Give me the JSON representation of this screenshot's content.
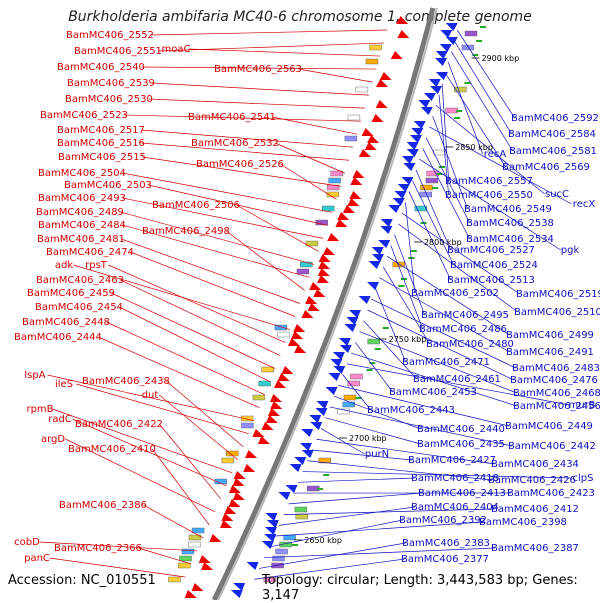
{
  "title": "Burkholderia ambifaria MC40-6 chromosome 1, complete genome",
  "footer": {
    "accession": "Accession: NC_010551",
    "topology": "Topology: circular; Length: 3,443,583 bp; Genes: 3,147"
  },
  "colors": {
    "forward_label": "#d40000",
    "reverse_label": "#1010c0",
    "forward_arrow": "#ee0000",
    "reverse_arrow": "#1428e6",
    "backbone": "#777777"
  },
  "ticks": [
    {
      "label": "2900 kbp"
    },
    {
      "label": "2850 kbp"
    },
    {
      "label": "2800 kbp"
    },
    {
      "label": "2750 kbp"
    },
    {
      "label": "2700 kbp"
    },
    {
      "label": "2650 kbp"
    }
  ],
  "forward_genes": [
    "BamMC406_2552",
    "BamMC406_2551",
    "moaC",
    "BamMC406_2540",
    "BamMC406_2563",
    "BamMC406_2539",
    "BamMC406_2530",
    "BamMC406_2523",
    "BamMC406_2541",
    "BamMC406_2517",
    "BamMC406_2516",
    "BamMC406_2532",
    "BamMC406_2515",
    "BamMC406_2526",
    "BamMC406_2504",
    "BamMC406_2503",
    "BamMC406_2493",
    "BamMC406_2506",
    "BamMC406_2489",
    "BamMC406_2484",
    "BamMC406_2498",
    "BamMC406_2481",
    "BamMC406_2474",
    "adk",
    "rpsT",
    "BamMC406_2463",
    "BamMC406_2459",
    "BamMC406_2454",
    "BamMC406_2448",
    "BamMC406_2444",
    "lspA",
    "ileS",
    "BamMC406_2438",
    "dut",
    "rpmB",
    "radC",
    "BamMC406_2422",
    "argD",
    "BamMC406_2410",
    "BamMC406_2386",
    "cobD",
    "BamMC406_2366",
    "panC"
  ],
  "reverse_genes": [
    "BamMC406_2592",
    "BamMC406_2584",
    "BamMC406_2581",
    "recA",
    "BamMC406_2569",
    "BamMC406_2557",
    "BamMC406_2550",
    "sucC",
    "BamMC406_2549",
    "recX",
    "BamMC406_2538",
    "BamMC406_2534",
    "pgk",
    "BamMC406_2527",
    "BamMC406_2524",
    "BamMC406_2513",
    "BamMC406_2502",
    "BamMC406_2519",
    "BamMC406_2510",
    "BamMC406_2495",
    "BamMC406_2486",
    "BamMC406_2499",
    "BamMC406_2480",
    "BamMC406_2491",
    "BamMC406_2471",
    "BamMC406_2483",
    "BamMC406_2476",
    "BamMC406_2461",
    "BamMC406_2468",
    "BamMC406_2453",
    "BamMC406_2456",
    "murB",
    "BamMC406_2443",
    "BamMC406_2449",
    "BamMC406_2440",
    "BamMC406_2442",
    "BamMC406_2435",
    "purN",
    "BamMC406_2434",
    "BamMC406_2427",
    "BamMC406_2426",
    "clpS",
    "BamMC406_2418",
    "BamMC406_2423",
    "BamMC406_2413",
    "BamMC406_2412",
    "BamMC406_2404",
    "BamMC406_2398",
    "BamMC406_2392",
    "BamMC406_2387",
    "BamMC406_2383",
    "BamMC406_2377"
  ]
}
